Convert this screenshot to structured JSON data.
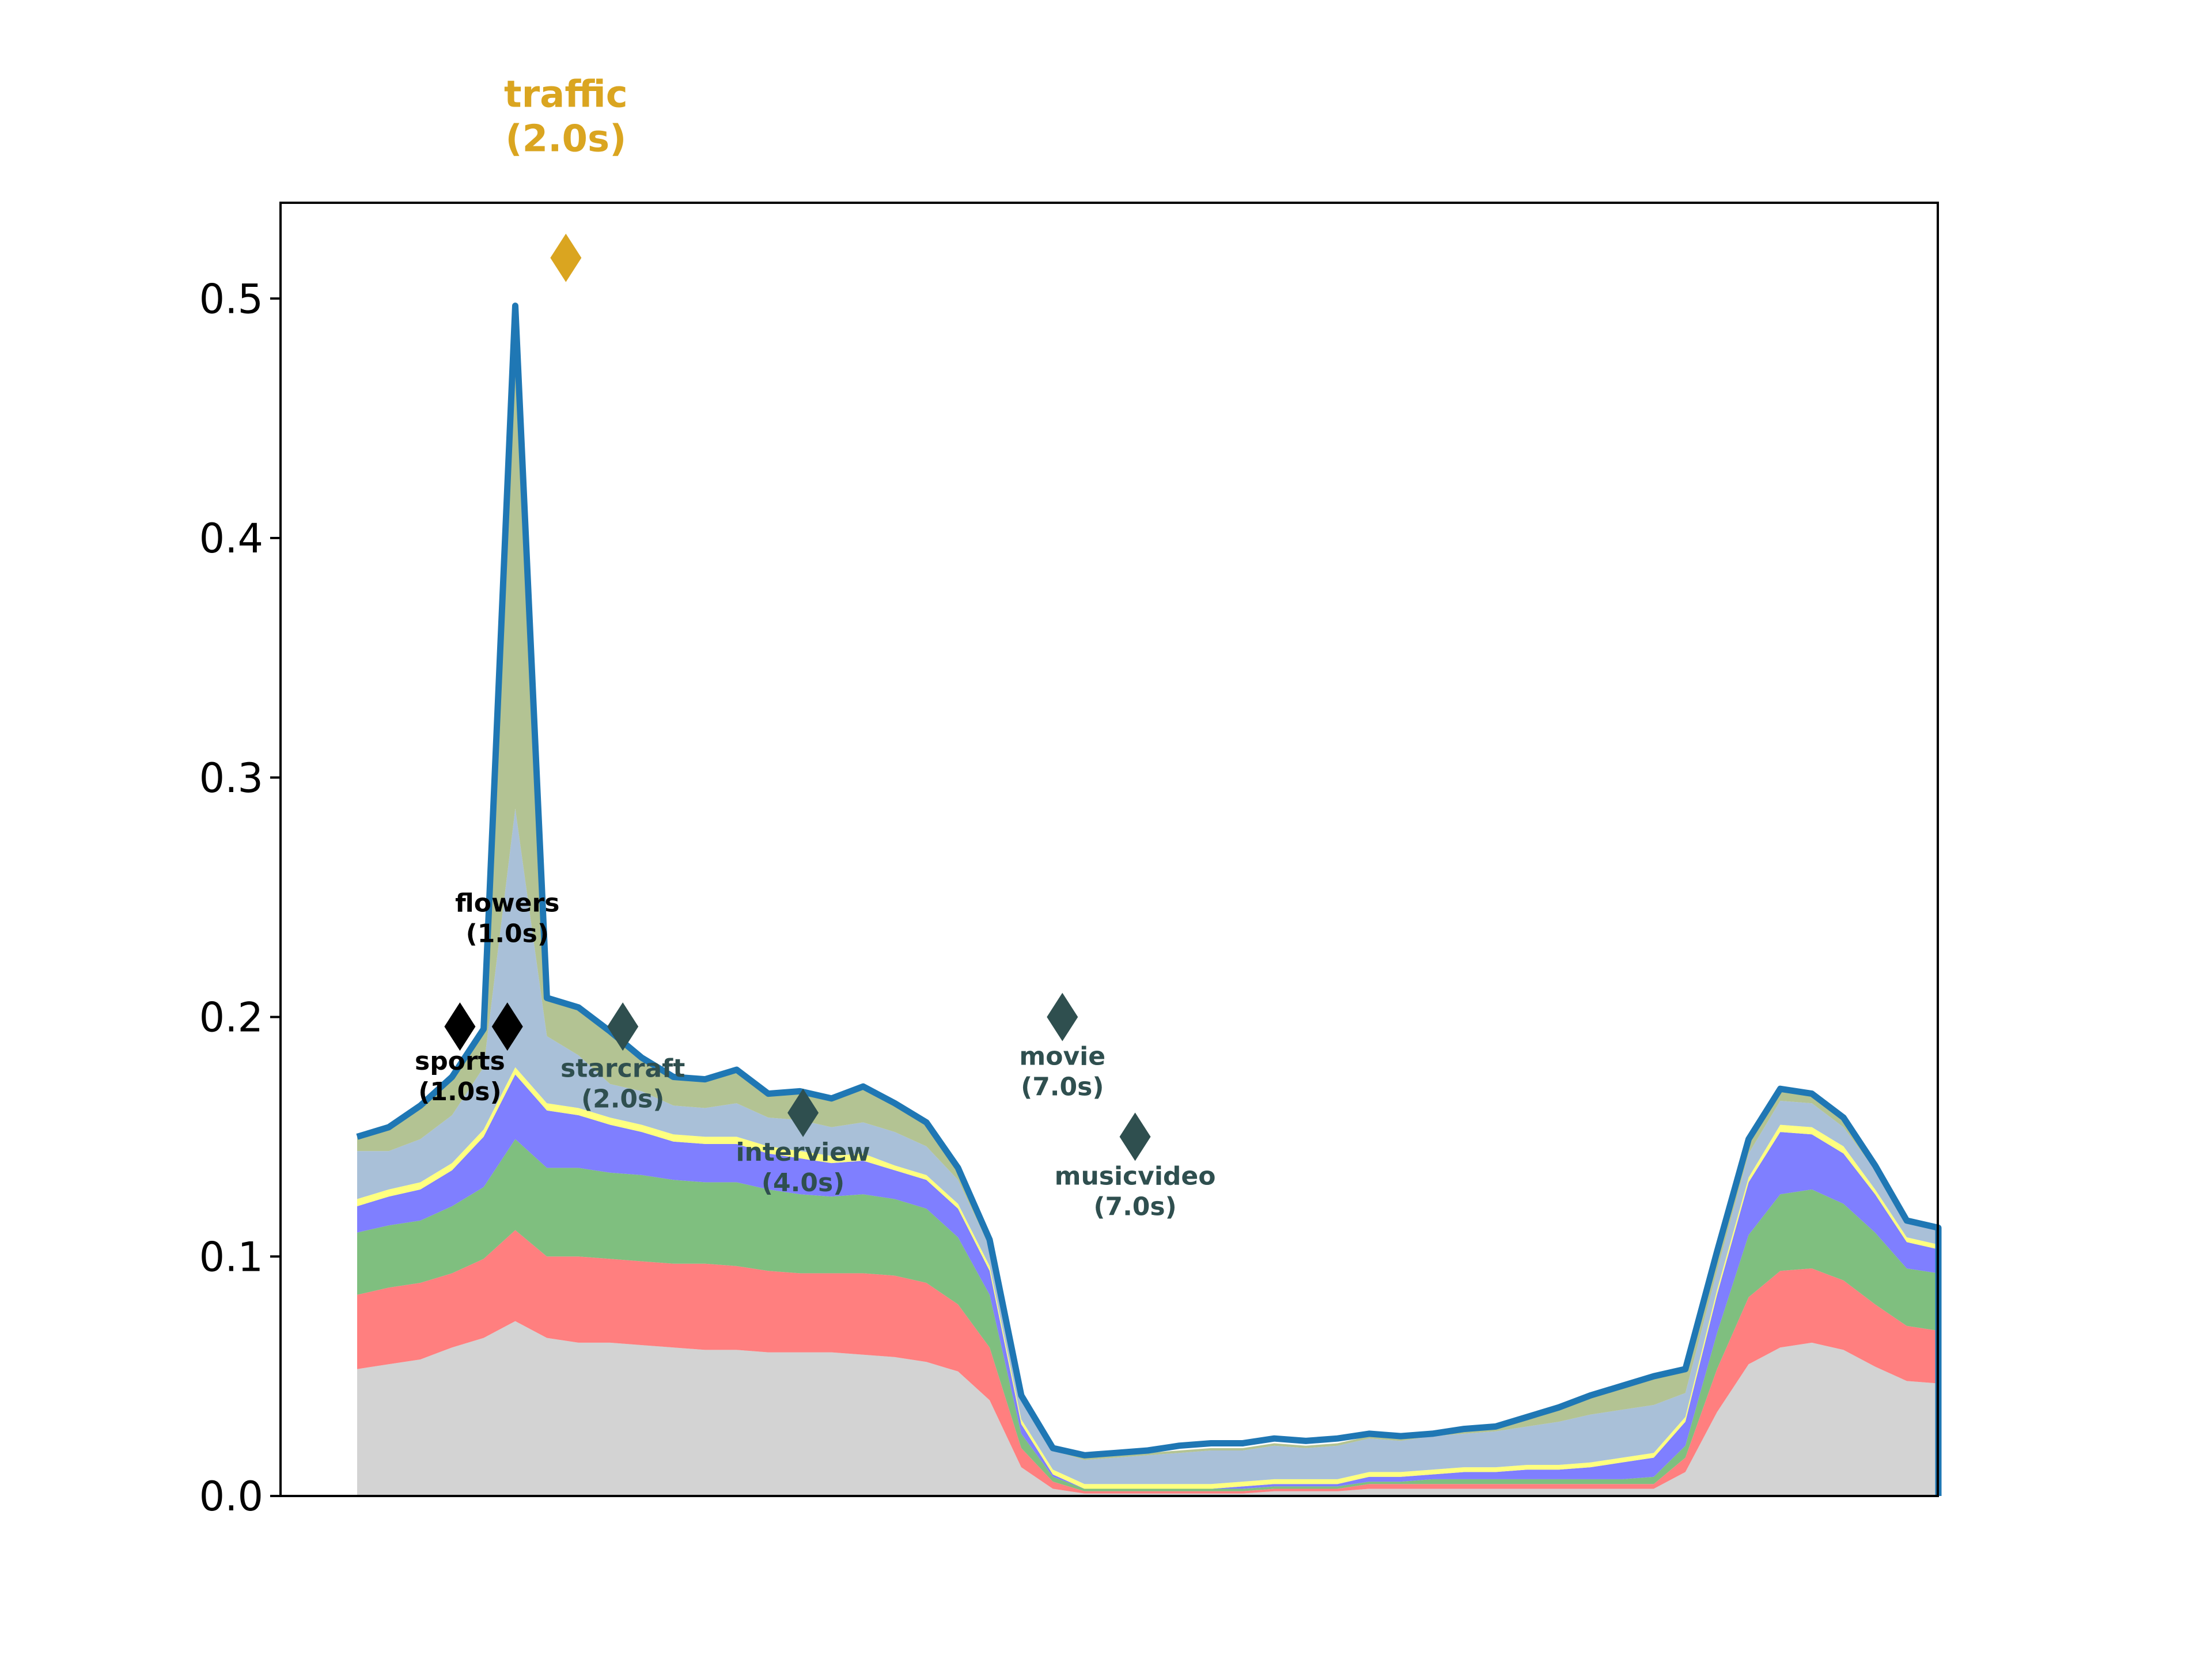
{
  "chart_data": {
    "type": "area",
    "x_range": [
      0,
      100
    ],
    "ylim": [
      0.0,
      0.54
    ],
    "y_ticks": [
      {
        "value": 0.0,
        "label": "0.0"
      },
      {
        "value": 0.1,
        "label": "0.1"
      },
      {
        "value": 0.2,
        "label": "0.2"
      },
      {
        "value": 0.3,
        "label": "0.3"
      },
      {
        "value": 0.4,
        "label": "0.4"
      },
      {
        "value": 0.5,
        "label": "0.5"
      }
    ],
    "grid": false,
    "x": [
      0,
      2,
      4,
      6,
      8,
      10,
      12,
      14,
      16,
      18,
      20,
      22,
      24,
      26,
      28,
      30,
      32,
      34,
      36,
      38,
      40,
      42,
      44,
      46,
      48,
      50,
      52,
      54,
      56,
      58,
      60,
      62,
      64,
      66,
      68,
      70,
      72,
      74,
      76,
      78,
      80,
      82,
      84,
      86,
      88,
      90,
      92,
      94,
      96,
      98,
      100
    ],
    "stack": [
      {
        "color": "#d3d3d3",
        "values": [
          0.053,
          0.055,
          0.057,
          0.062,
          0.066,
          0.073,
          0.066,
          0.064,
          0.064,
          0.063,
          0.062,
          0.061,
          0.061,
          0.06,
          0.06,
          0.06,
          0.059,
          0.058,
          0.056,
          0.052,
          0.04,
          0.012,
          0.003,
          0.001,
          0.001,
          0.001,
          0.001,
          0.001,
          0.001,
          0.002,
          0.002,
          0.002,
          0.003,
          0.003,
          0.003,
          0.003,
          0.003,
          0.003,
          0.003,
          0.003,
          0.003,
          0.003,
          0.01,
          0.035,
          0.055,
          0.062,
          0.064,
          0.061,
          0.054,
          0.048,
          0.047
        ]
      },
      {
        "color": "#ff7f7f",
        "values": [
          0.031,
          0.032,
          0.032,
          0.031,
          0.033,
          0.038,
          0.034,
          0.036,
          0.035,
          0.035,
          0.035,
          0.036,
          0.035,
          0.034,
          0.033,
          0.033,
          0.034,
          0.034,
          0.033,
          0.028,
          0.022,
          0.008,
          0.003,
          0.001,
          0.001,
          0.001,
          0.001,
          0.001,
          0.001,
          0.001,
          0.001,
          0.001,
          0.002,
          0.002,
          0.002,
          0.002,
          0.002,
          0.002,
          0.002,
          0.002,
          0.002,
          0.002,
          0.006,
          0.018,
          0.028,
          0.032,
          0.031,
          0.029,
          0.026,
          0.023,
          0.022
        ]
      },
      {
        "color": "#7fbf7f",
        "values": [
          0.026,
          0.026,
          0.026,
          0.028,
          0.03,
          0.038,
          0.037,
          0.037,
          0.036,
          0.036,
          0.035,
          0.034,
          0.035,
          0.034,
          0.033,
          0.032,
          0.033,
          0.032,
          0.031,
          0.028,
          0.022,
          0.006,
          0.002,
          0.001,
          0.001,
          0.001,
          0.001,
          0.001,
          0.001,
          0.001,
          0.001,
          0.001,
          0.001,
          0.001,
          0.002,
          0.002,
          0.002,
          0.002,
          0.002,
          0.002,
          0.002,
          0.003,
          0.005,
          0.015,
          0.026,
          0.032,
          0.033,
          0.032,
          0.03,
          0.024,
          0.024
        ]
      },
      {
        "color": "#7f7fff",
        "values": [
          0.011,
          0.012,
          0.013,
          0.015,
          0.021,
          0.027,
          0.024,
          0.022,
          0.02,
          0.018,
          0.016,
          0.016,
          0.016,
          0.015,
          0.015,
          0.014,
          0.014,
          0.012,
          0.012,
          0.012,
          0.01,
          0.004,
          0.001,
          0.0,
          0.0,
          0.0,
          0.0,
          0.0,
          0.001,
          0.001,
          0.001,
          0.001,
          0.002,
          0.002,
          0.002,
          0.003,
          0.003,
          0.004,
          0.004,
          0.005,
          0.007,
          0.008,
          0.01,
          0.016,
          0.022,
          0.026,
          0.023,
          0.021,
          0.016,
          0.011,
          0.01
        ]
      },
      {
        "color": "#ffff7f",
        "values": [
          0.003,
          0.003,
          0.003,
          0.003,
          0.003,
          0.003,
          0.003,
          0.003,
          0.003,
          0.003,
          0.003,
          0.003,
          0.003,
          0.003,
          0.003,
          0.003,
          0.003,
          0.002,
          0.002,
          0.002,
          0.002,
          0.002,
          0.002,
          0.002,
          0.002,
          0.002,
          0.002,
          0.002,
          0.002,
          0.002,
          0.002,
          0.002,
          0.002,
          0.002,
          0.002,
          0.002,
          0.002,
          0.002,
          0.002,
          0.002,
          0.002,
          0.002,
          0.002,
          0.002,
          0.002,
          0.003,
          0.003,
          0.003,
          0.002,
          0.002,
          0.002
        ]
      },
      {
        "color": "#a9c0d8",
        "values": [
          0.02,
          0.016,
          0.018,
          0.02,
          0.026,
          0.108,
          0.028,
          0.022,
          0.014,
          0.014,
          0.012,
          0.012,
          0.014,
          0.012,
          0.013,
          0.012,
          0.013,
          0.014,
          0.012,
          0.01,
          0.008,
          0.008,
          0.008,
          0.01,
          0.011,
          0.012,
          0.013,
          0.014,
          0.013,
          0.014,
          0.013,
          0.014,
          0.014,
          0.013,
          0.014,
          0.014,
          0.015,
          0.016,
          0.018,
          0.02,
          0.02,
          0.02,
          0.01,
          0.008,
          0.01,
          0.01,
          0.01,
          0.008,
          0.008,
          0.006,
          0.006
        ]
      },
      {
        "color": "#b3c393",
        "values": [
          0.006,
          0.01,
          0.014,
          0.016,
          0.016,
          0.21,
          0.016,
          0.02,
          0.022,
          0.014,
          0.012,
          0.012,
          0.014,
          0.01,
          0.012,
          0.012,
          0.015,
          0.012,
          0.01,
          0.005,
          0.003,
          0.002,
          0.001,
          0.001,
          0.001,
          0.001,
          0.001,
          0.001,
          0.001,
          0.001,
          0.001,
          0.001,
          0.001,
          0.001,
          0.001,
          0.002,
          0.002,
          0.004,
          0.006,
          0.008,
          0.01,
          0.012,
          0.01,
          0.008,
          0.006,
          0.005,
          0.004,
          0.004,
          0.002,
          0.001,
          0.001
        ]
      }
    ],
    "total_line": {
      "color": "#1f77b4",
      "values": [
        0.15,
        0.154,
        0.163,
        0.175,
        0.195,
        0.497,
        0.208,
        0.204,
        0.194,
        0.183,
        0.175,
        0.174,
        0.178,
        0.168,
        0.169,
        0.166,
        0.171,
        0.164,
        0.156,
        0.137,
        0.107,
        0.042,
        0.02,
        0.017,
        0.018,
        0.019,
        0.021,
        0.022,
        0.022,
        0.024,
        0.023,
        0.024,
        0.026,
        0.025,
        0.026,
        0.028,
        0.029,
        0.033,
        0.037,
        0.042,
        0.046,
        0.05,
        0.053,
        0.102,
        0.149,
        0.17,
        0.168,
        0.158,
        0.138,
        0.115,
        0.112
      ]
    },
    "markers": [
      {
        "label": "traffic",
        "duration": "(2.0s)",
        "x": 13.2,
        "y": 0.517,
        "color": "#daa520",
        "text_y": 0.58,
        "font": "large"
      },
      {
        "label": "sports",
        "duration": "(1.0s)",
        "x": 6.5,
        "y": 0.196,
        "color": "#000000",
        "text_y": 0.178,
        "font": "small"
      },
      {
        "label": "flowers",
        "duration": "(1.0s)",
        "x": 9.5,
        "y": 0.196,
        "color": "#000000",
        "text_y": 0.244,
        "font": "small"
      },
      {
        "label": "starcraft",
        "duration": "(2.0s)",
        "x": 16.8,
        "y": 0.196,
        "color": "#2f4f4f",
        "text_y": 0.175,
        "font": "small"
      },
      {
        "label": "interview",
        "duration": "(4.0s)",
        "x": 28.2,
        "y": 0.16,
        "color": "#2f4f4f",
        "text_y": 0.14,
        "font": "small"
      },
      {
        "label": "movie",
        "duration": "(7.0s)",
        "x": 44.6,
        "y": 0.2,
        "color": "#2f4f4f",
        "text_y": 0.18,
        "font": "small"
      },
      {
        "label": "musicvideo",
        "duration": "(7.0s)",
        "x": 49.2,
        "y": 0.15,
        "color": "#2f4f4f",
        "text_y": 0.13,
        "font": "small"
      }
    ]
  }
}
